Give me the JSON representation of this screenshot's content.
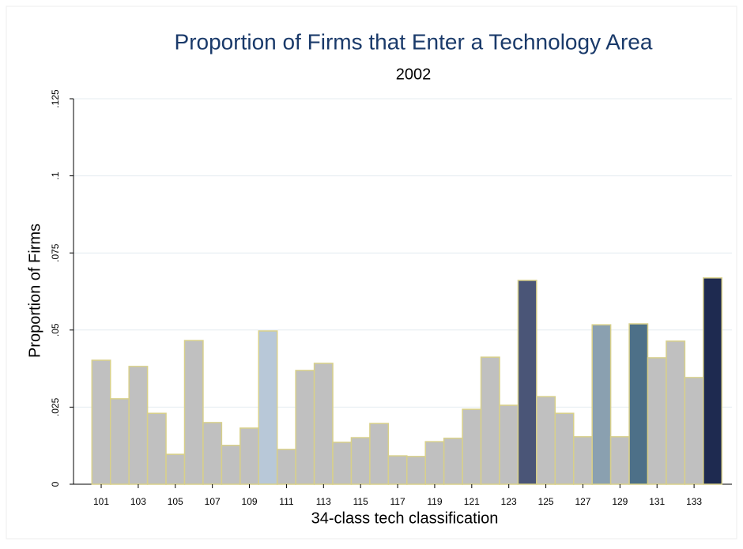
{
  "chart_data": {
    "type": "bar",
    "title": "Proportion of Firms that Enter a Technology Area",
    "subtitle": "2002",
    "x_label": "34-class tech classification",
    "y_label": "Proportion of Firms",
    "categories": [
      "101",
      null,
      "103",
      null,
      "105",
      null,
      "107",
      null,
      "109",
      null,
      "111",
      null,
      "113",
      null,
      "115",
      null,
      "117",
      null,
      "119",
      null,
      "121",
      null,
      "123",
      null,
      "125",
      null,
      "127",
      null,
      "129",
      null,
      "131",
      null,
      "133",
      null
    ],
    "values": [
      0.0402,
      0.0277,
      0.0382,
      0.023,
      0.0097,
      0.0466,
      0.02,
      0.0126,
      0.0182,
      0.0497,
      0.0113,
      0.0369,
      0.0392,
      0.0136,
      0.0151,
      0.0197,
      0.0092,
      0.009,
      0.0138,
      0.0149,
      0.0243,
      0.0412,
      0.0256,
      0.0661,
      0.0284,
      0.023,
      0.0154,
      0.0517,
      0.0154,
      0.052,
      0.041,
      0.0464,
      0.0346,
      0.0669
    ],
    "colors": [
      "#c0c0c0",
      "#c0c0c0",
      "#c0c0c0",
      "#c0c0c0",
      "#c0c0c0",
      "#c0c0c0",
      "#c0c0c0",
      "#c0c0c0",
      "#c0c0c0",
      "#b8c8d8",
      "#c0c0c0",
      "#c0c0c0",
      "#c0c0c0",
      "#c0c0c0",
      "#c0c0c0",
      "#c0c0c0",
      "#c0c0c0",
      "#c0c0c0",
      "#c0c0c0",
      "#c0c0c0",
      "#c0c0c0",
      "#c0c0c0",
      "#c0c0c0",
      "#4a5577",
      "#c0c0c0",
      "#c0c0c0",
      "#c0c0c0",
      "#8aa0b0",
      "#c0c0c0",
      "#4d7088",
      "#c0c0c0",
      "#c0c0c0",
      "#c0c0c0",
      "#1e2a50"
    ],
    "edge_color": "#d8d08a",
    "ylim": [
      0,
      0.125
    ],
    "yticks": [
      0,
      {
        "value": 0.025,
        "label": ".025"
      },
      {
        "value": 0.05,
        "label": ".05"
      },
      {
        "value": 0.075,
        "label": ".075"
      },
      {
        "value": 0.1,
        "label": ".1"
      },
      {
        "value": 0.125,
        "label": ".125"
      }
    ],
    "grid": true
  }
}
